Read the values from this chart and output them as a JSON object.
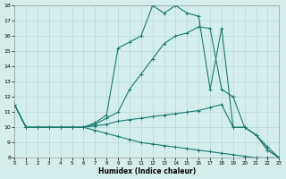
{
  "xlabel": "Humidex (Indice chaleur)",
  "bg_color": "#d4eeec",
  "grid_color": "#b0d4d2",
  "line_color": "#1a7a6e",
  "xlim": [
    0,
    23
  ],
  "ylim": [
    8,
    18
  ],
  "xticks": [
    0,
    1,
    2,
    3,
    4,
    5,
    6,
    7,
    8,
    9,
    10,
    11,
    12,
    13,
    14,
    15,
    16,
    17,
    18,
    19,
    20,
    21,
    22,
    23
  ],
  "yticks": [
    8,
    9,
    10,
    11,
    12,
    13,
    14,
    15,
    16,
    17,
    18
  ],
  "curve_top_x": [
    0,
    1,
    2,
    3,
    4,
    5,
    6,
    7,
    8,
    9,
    10,
    11,
    12,
    13,
    14,
    15,
    16,
    17,
    18,
    19,
    20,
    21,
    22,
    23
  ],
  "curve_top_y": [
    11.5,
    10.0,
    10.0,
    10.0,
    10.0,
    10.0,
    10.0,
    10.3,
    10.8,
    15.2,
    15.6,
    16.0,
    18.0,
    17.5,
    18.0,
    17.5,
    17.3,
    12.5,
    16.5,
    10.0,
    10.0,
    9.5,
    8.5,
    8.0
  ],
  "curve_mid_x": [
    0,
    1,
    2,
    3,
    4,
    5,
    6,
    7,
    8,
    9,
    10,
    11,
    12,
    13,
    14,
    15,
    16,
    17,
    18,
    19,
    20,
    21,
    22,
    23
  ],
  "curve_mid_y": [
    11.5,
    10.0,
    10.0,
    10.0,
    10.0,
    10.0,
    10.0,
    10.2,
    10.6,
    11.0,
    12.5,
    13.5,
    14.5,
    15.5,
    16.0,
    16.2,
    16.6,
    16.5,
    12.5,
    12.0,
    10.0,
    9.5,
    8.5,
    8.0
  ],
  "curve_slight_x": [
    0,
    1,
    2,
    3,
    4,
    5,
    6,
    7,
    8,
    9,
    10,
    11,
    12,
    13,
    14,
    15,
    16,
    17,
    18,
    19,
    20,
    21,
    22,
    23
  ],
  "curve_slight_y": [
    11.5,
    10.0,
    10.0,
    10.0,
    10.0,
    10.0,
    10.0,
    10.1,
    10.2,
    10.4,
    10.5,
    10.6,
    10.7,
    10.8,
    10.9,
    11.0,
    11.1,
    11.3,
    11.5,
    10.0,
    10.0,
    9.5,
    8.7,
    8.0
  ],
  "curve_flat_x": [
    0,
    1,
    2,
    3,
    4,
    5,
    6,
    7,
    8,
    9,
    10,
    11,
    12,
    13,
    14,
    15,
    16,
    17,
    18,
    19,
    20,
    21,
    22,
    23
  ],
  "curve_flat_y": [
    11.5,
    10.0,
    10.0,
    10.0,
    10.0,
    10.0,
    10.0,
    9.8,
    9.6,
    9.4,
    9.2,
    9.0,
    8.9,
    8.8,
    8.7,
    8.6,
    8.5,
    8.4,
    8.3,
    8.2,
    8.1,
    8.0,
    8.0,
    8.0
  ]
}
